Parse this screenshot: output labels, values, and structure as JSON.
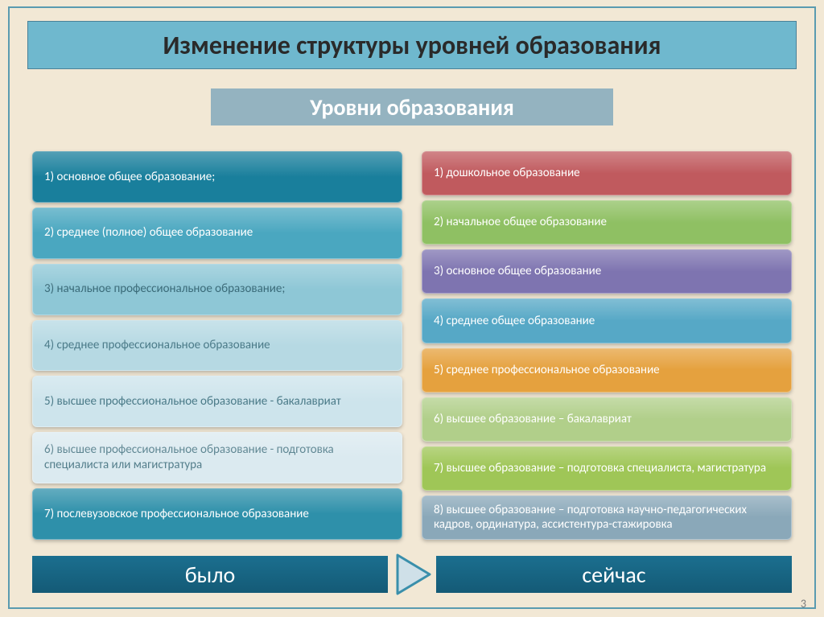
{
  "title": "Изменение структуры уровней образования",
  "subtitle": "Уровни образования",
  "page_number": "3",
  "bottom": {
    "left": "было",
    "right": "сейчас"
  },
  "colors": {
    "slide_bg": "#f2e8d5",
    "frame_border": "#5a9bb0",
    "title_bg": "#6fb8ce",
    "title_text": "#2a2a2a",
    "subtitle_bg": "#94b3c0",
    "subtitle_text": "#ffffff",
    "bottom_bg_top": "#1b6f8f",
    "bottom_bg_bottom": "#145a76",
    "bottom_text": "#ffffff",
    "arrow_stroke": "#3a8fab",
    "arrow_fill": "#cfe0e8",
    "page_num_text": "#7a7a7a"
  },
  "typography": {
    "title_fontsize": 32,
    "subtitle_fontsize": 28,
    "item_fontsize": 15,
    "bottom_fontsize": 28,
    "font_family": "Calibri"
  },
  "left_column": {
    "label": "было",
    "items": [
      {
        "text": "1) основное общее образование;",
        "bg": "#197f9c",
        "fg": "#ffffff"
      },
      {
        "text": "2) среднее (полное) общее образование",
        "bg": "#4aa7c0",
        "fg": "#ffffff"
      },
      {
        "text": "3) начальное профессиональное образование;",
        "bg": "#8ec7d6",
        "fg": "#3a6a78"
      },
      {
        "text": "4) среднее профессиональное образование",
        "bg": "#b6d9e3",
        "fg": "#4a7a88"
      },
      {
        "text": "5) высшее профессиональное образование - бакалавриат",
        "bg": "#cde4ec",
        "fg": "#4a7a88"
      },
      {
        "text": "6) высшее профессиональное образование  -  подготовка специалиста   или  магистратура",
        "bg": "#dbeaf0",
        "fg": "#557f8c"
      },
      {
        "text": "7) послевузовское профессиональное образование",
        "bg": "#2e90aa",
        "fg": "#ffffff"
      }
    ]
  },
  "right_column": {
    "label": "сейчас",
    "items": [
      {
        "text": "1) дошкольное образование",
        "bg": "#c05a5e",
        "fg": "#ffffff"
      },
      {
        "text": "2) начальное общее образование",
        "bg": "#8fc063",
        "fg": "#ffffff"
      },
      {
        "text": "3) основное общее образование",
        "bg": "#7e74b0",
        "fg": "#ffffff"
      },
      {
        "text": "4) среднее общее образование",
        "bg": "#56a8c6",
        "fg": "#ffffff"
      },
      {
        "text": "5) среднее профессиональное образование",
        "bg": "#e5a13e",
        "fg": "#ffffff"
      },
      {
        "text": "6) высшее образование – бакалавриат",
        "bg": "#b1cf8a",
        "fg": "#ffffff"
      },
      {
        "text": "7) высшее образование – подготовка специалиста, магистратура",
        "bg": "#9fc657",
        "fg": "#ffffff"
      },
      {
        "text": "8) высшее образование – подготовка научно-педагогических кадров, ординатура, ассистентура-стажировка",
        "bg": "#8aa8b9",
        "fg": "#ffffff"
      }
    ]
  }
}
